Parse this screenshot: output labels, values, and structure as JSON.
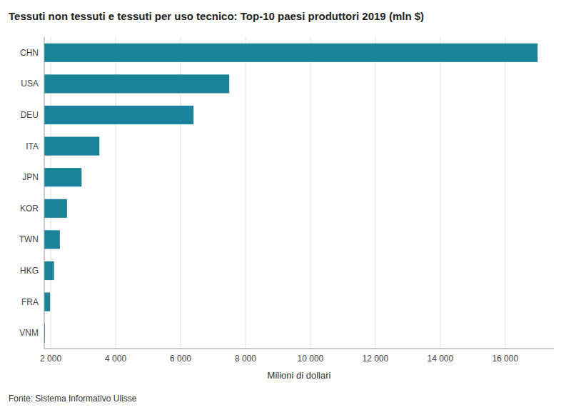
{
  "chart_data": {
    "type": "bar",
    "orientation": "horizontal",
    "title": "Tessuti non tessuti e tessuti per uso tecnico: Top-10 paesi produttori 2019 (mln $)",
    "categories": [
      "CHN",
      "USA",
      "DEU",
      "ITA",
      "JPN",
      "KOR",
      "TWN",
      "HKG",
      "FRA",
      "VNM"
    ],
    "values": [
      17000,
      7500,
      6400,
      3500,
      2950,
      2500,
      2280,
      2100,
      1980,
      1820
    ],
    "color": "#1a8399",
    "xlabel": "Milioni di dollari",
    "xlim": [
      1800,
      17500
    ],
    "xticks": [
      {
        "value": 2000,
        "label": "2 000"
      },
      {
        "value": 4000,
        "label": "4 000"
      },
      {
        "value": 6000,
        "label": "6 000"
      },
      {
        "value": 8000,
        "label": "8 000"
      },
      {
        "value": 10000,
        "label": "10 000"
      },
      {
        "value": 12000,
        "label": "12 000"
      },
      {
        "value": 14000,
        "label": "14 000"
      },
      {
        "value": 16000,
        "label": "16 000"
      }
    ],
    "grid": true,
    "footnote": "Fonte: Sistema Informativo Ulisse"
  }
}
